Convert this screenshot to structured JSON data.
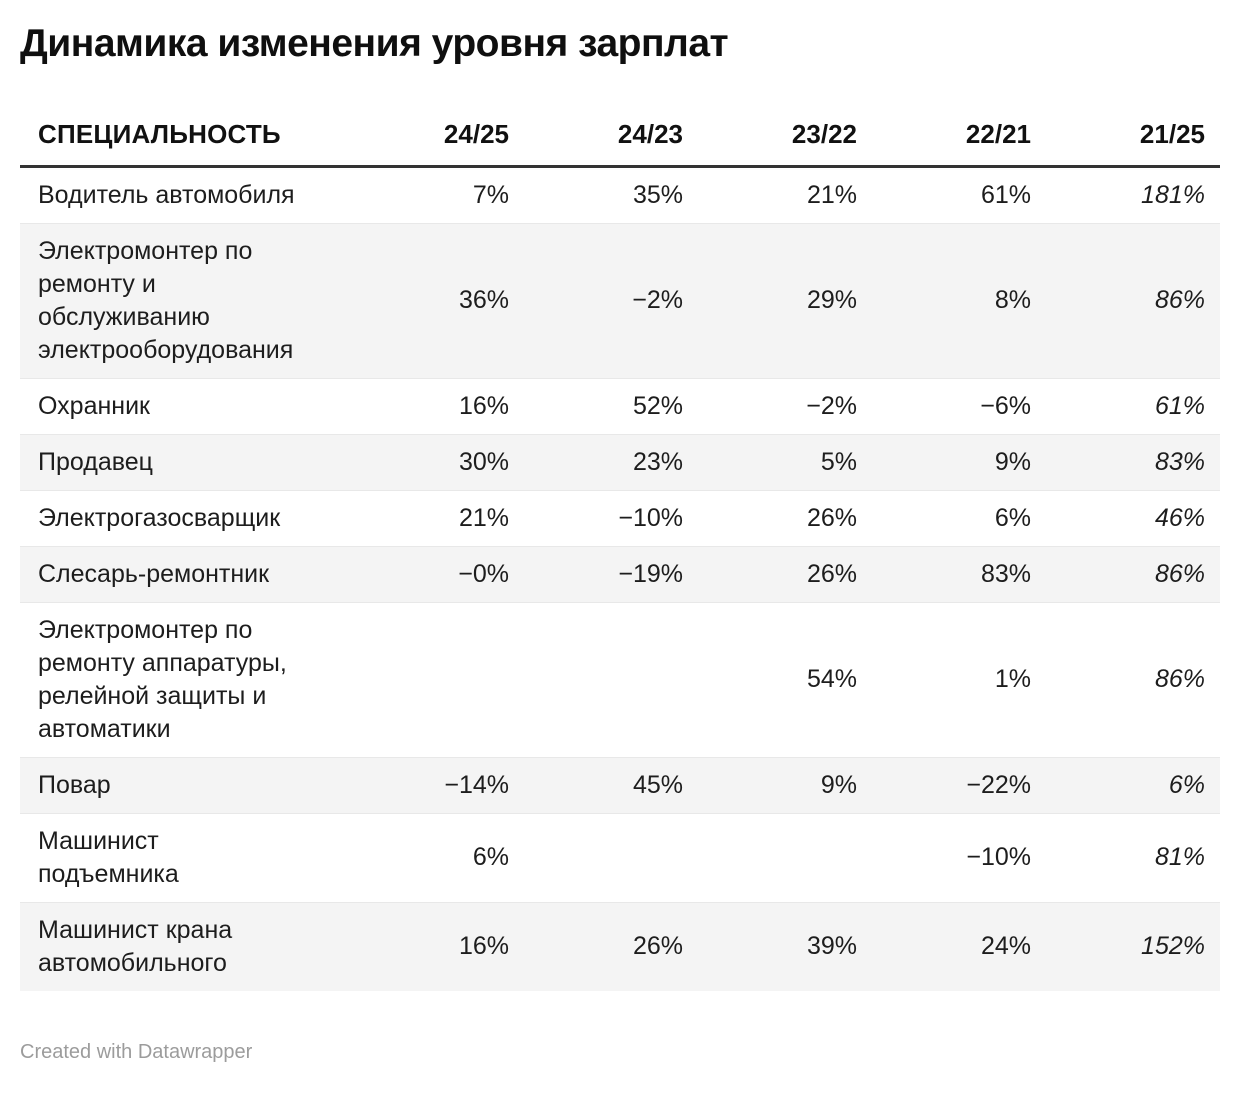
{
  "chart_data": {
    "type": "table",
    "title": "Динамика изменения уровня зарплат",
    "columns": [
      "СПЕЦИАЛЬНОСТЬ",
      "24/25",
      "24/23",
      "23/22",
      "22/21",
      "21/25"
    ],
    "rows": [
      {
        "label": "Водитель автомобиля",
        "values": [
          "7%",
          "35%",
          "21%",
          "61%",
          "181%"
        ]
      },
      {
        "label": "Электромонтер по\nремонту и\nобслуживанию\nэлектрооборудования",
        "values": [
          "36%",
          "−2%",
          "29%",
          "8%",
          "86%"
        ]
      },
      {
        "label": "Охранник",
        "values": [
          "16%",
          "52%",
          "−2%",
          "−6%",
          "61%"
        ]
      },
      {
        "label": "Продавец",
        "values": [
          "30%",
          "23%",
          "5%",
          "9%",
          "83%"
        ]
      },
      {
        "label": "Электрогазосварщик",
        "values": [
          "21%",
          "−10%",
          "26%",
          "6%",
          "46%"
        ]
      },
      {
        "label": "Слесарь-ремонтник",
        "values": [
          "−0%",
          "−19%",
          "26%",
          "83%",
          "86%"
        ]
      },
      {
        "label": "Электромонтер по\nремонту аппаратуры,\nрелейной защиты и\nавтоматики",
        "values": [
          "",
          "",
          "54%",
          "1%",
          "86%"
        ]
      },
      {
        "label": "Повар",
        "values": [
          "−14%",
          "45%",
          "9%",
          "−22%",
          "6%"
        ]
      },
      {
        "label": "Машинист\nподъемника",
        "values": [
          "6%",
          "",
          "",
          "−10%",
          "81%"
        ]
      },
      {
        "label": "Машинист крана\nавтомобильного",
        "values": [
          "16%",
          "26%",
          "39%",
          "24%",
          "152%"
        ]
      }
    ],
    "last_column_style": "italic",
    "legend_position": "none",
    "grid": "horizontal-row-stripes"
  },
  "footer": {
    "attribution": "Created with Datawrapper"
  },
  "colors": {
    "text": "#1d1d1d",
    "title_text": "#0f0f0f",
    "header_rule": "#333333",
    "row_alt_bg": "#f4f4f4",
    "row_border": "#e8e8e8",
    "footer_text": "#9c9c9c"
  }
}
